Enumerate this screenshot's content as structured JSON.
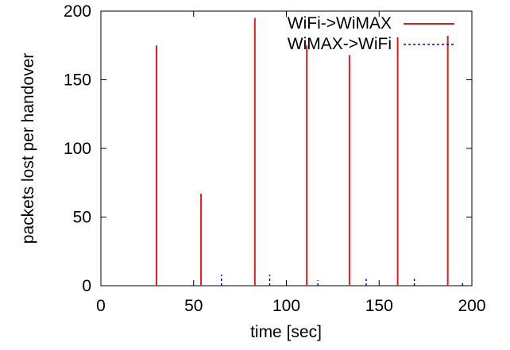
{
  "colors": {
    "wifi_to_wimax": "#e41a1c",
    "wimax_to_wifi": "#0000cc",
    "axis": "#000000"
  },
  "chart_data": {
    "type": "bar",
    "xlabel": "time [sec]",
    "ylabel": "packets lost per handover",
    "xlim": [
      0,
      200
    ],
    "ylim": [
      0,
      200
    ],
    "xticks": [
      0,
      50,
      100,
      150,
      200
    ],
    "yticks": [
      0,
      50,
      100,
      150,
      200
    ],
    "grid": false,
    "legend_position": "top-right",
    "series": [
      {
        "name": "WiFi->WiMAX",
        "style": "solid",
        "x": [
          30,
          54,
          83,
          111,
          134,
          160,
          187
        ],
        "values": [
          175,
          67,
          195,
          175,
          168,
          181,
          182
        ]
      },
      {
        "name": "WiMAX->WiFi",
        "style": "dashed",
        "x": [
          65,
          91,
          117,
          143,
          169,
          195
        ],
        "values": [
          8,
          8,
          4,
          5,
          5,
          2
        ]
      }
    ]
  }
}
